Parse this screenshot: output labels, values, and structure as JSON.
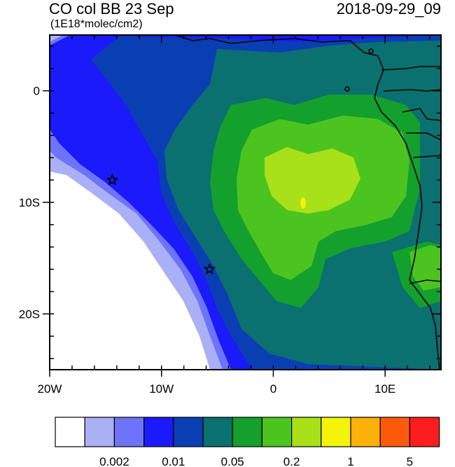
{
  "title": {
    "left": "CO col BB 23 Sep",
    "units": "(1E18*molec/cm2)",
    "right": "2018-09-29_09"
  },
  "axes": {
    "lon_range": [
      -20,
      15
    ],
    "lat_range": [
      -25,
      5
    ],
    "x_ticks": [
      {
        "value": -20,
        "label": "20W"
      },
      {
        "value": -10,
        "label": "10W"
      },
      {
        "value": 0,
        "label": "0"
      },
      {
        "value": 10,
        "label": "10E"
      }
    ],
    "y_ticks": [
      {
        "value": 0,
        "label": "0"
      },
      {
        "value": -10,
        "label": "10S"
      },
      {
        "value": -20,
        "label": "20S"
      }
    ]
  },
  "markers": [
    {
      "lon": -14.4,
      "lat": -8.0,
      "symbol": "star"
    },
    {
      "lon": -5.7,
      "lat": -16.0,
      "symbol": "star"
    }
  ],
  "colorbar": {
    "colors": [
      "#ffffff",
      "#aab0f5",
      "#6e74fa",
      "#1a1afa",
      "#0a3fb4",
      "#0b7070",
      "#14a02c",
      "#4cc420",
      "#a8e01a",
      "#f4f40a",
      "#fcb00a",
      "#fc5a0a",
      "#fc1e1e"
    ],
    "labels": [
      {
        "after_box": 2,
        "text": "0.002"
      },
      {
        "after_box": 4,
        "text": "0.01"
      },
      {
        "after_box": 6,
        "text": "0.05"
      },
      {
        "after_box": 8,
        "text": "0.2"
      },
      {
        "after_box": 10,
        "text": "1"
      },
      {
        "after_box": 12,
        "text": "5"
      }
    ]
  }
}
